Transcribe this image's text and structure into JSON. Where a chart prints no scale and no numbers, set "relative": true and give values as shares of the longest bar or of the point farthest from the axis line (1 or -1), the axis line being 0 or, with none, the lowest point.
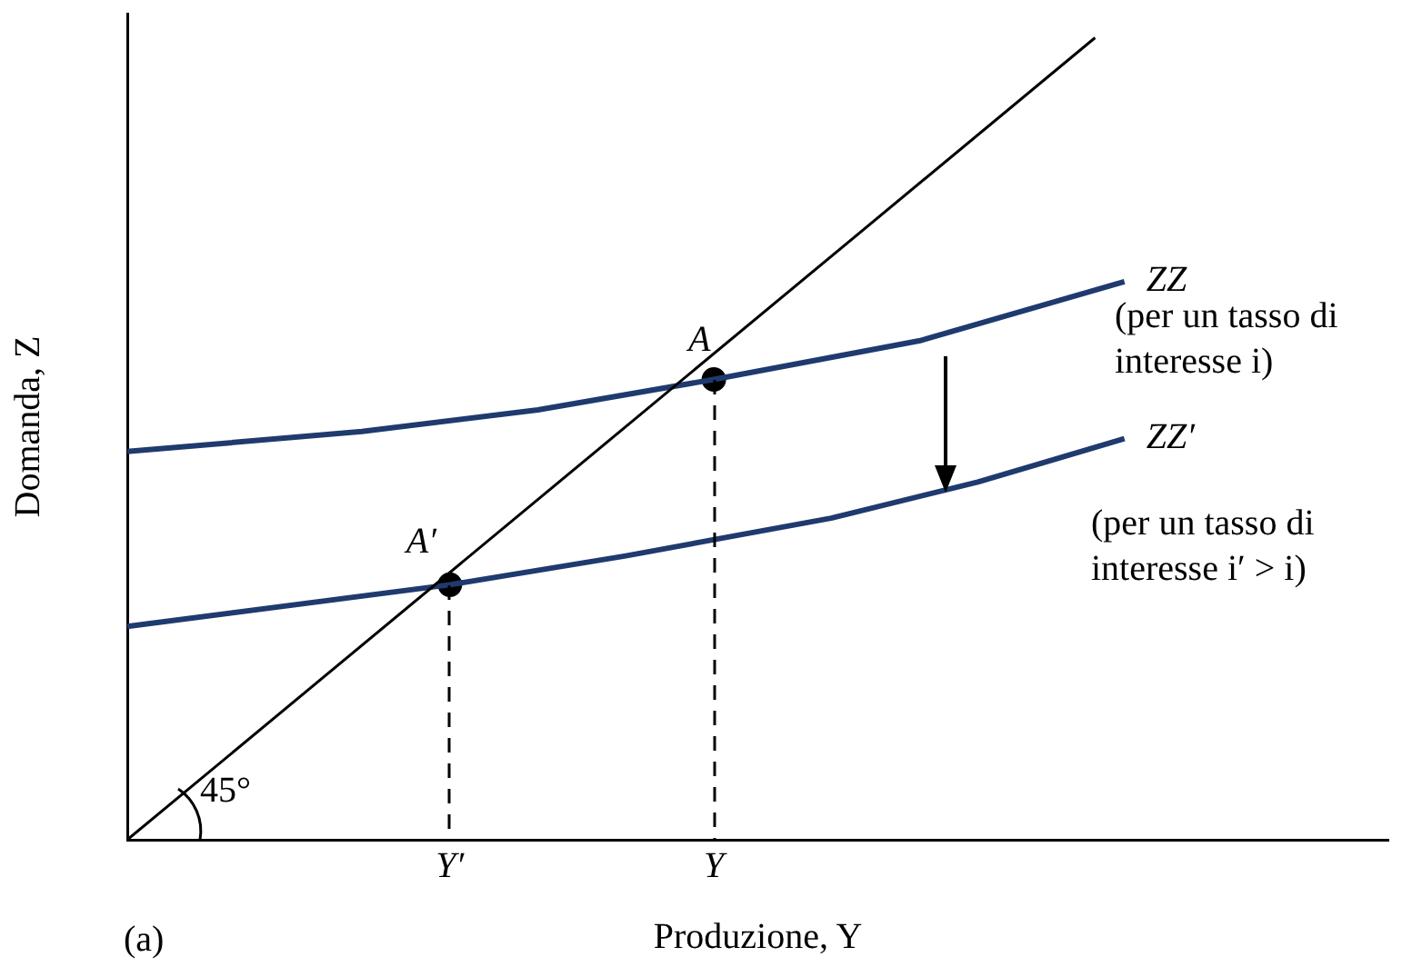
{
  "chart_data": {
    "type": "line",
    "relative": true,
    "xlabel": "Produzione, Y",
    "ylabel": "Domanda, Z",
    "grid": false,
    "legend": false,
    "marker": "none",
    "categories": [
      null,
      null,
      null,
      null,
      null,
      null,
      null,
      null,
      null,
      null,
      null,
      "Y′",
      null,
      null,
      null,
      null,
      null,
      null,
      null,
      null,
      "Y",
      null,
      null,
      null,
      null,
      null,
      null,
      null,
      null,
      null,
      null,
      null,
      null,
      null,
      null,
      null,
      null,
      null,
      null,
      null,
      null,
      null,
      null,
      null
    ],
    "series": [
      {
        "color": "#000000",
        "values": [
          0,
          null,
          null,
          null,
          null,
          null,
          null,
          null,
          null,
          null,
          null,
          null,
          null,
          null,
          null,
          null,
          null,
          null,
          null,
          null,
          null,
          null,
          null,
          null,
          null,
          null,
          null,
          null,
          null,
          null,
          null,
          null,
          null,
          1,
          null,
          null,
          null,
          null,
          null,
          null,
          null,
          null,
          null,
          null
        ]
      },
      {
        "name": "ZZ",
        "color": "#1f3a6e",
        "values": [
          0.484,
          null,
          null,
          null,
          null,
          null,
          null,
          null,
          0.509,
          null,
          null,
          null,
          null,
          null,
          0.536,
          null,
          null,
          null,
          null,
          null,
          0.574,
          null,
          null,
          null,
          null,
          null,
          null,
          0.622,
          null,
          null,
          null,
          null,
          null,
          null,
          0.696,
          null,
          null,
          null,
          null,
          null,
          null,
          null,
          null,
          null
        ]
      },
      {
        "name": "ZZ′",
        "color": "#1f3a6e",
        "values": [
          0.266,
          null,
          null,
          null,
          null,
          null,
          null,
          null,
          null,
          null,
          null,
          0.318,
          null,
          null,
          null,
          null,
          null,
          0.354,
          null,
          null,
          null,
          null,
          null,
          null,
          0.401,
          null,
          null,
          null,
          null,
          0.446,
          null,
          null,
          null,
          null,
          0.5,
          null,
          null,
          null,
          null,
          null,
          null,
          null,
          null,
          null
        ]
      },
      {
        "type": "scatter",
        "marker": "circle",
        "color": "#000000",
        "values": [
          null,
          null,
          null,
          null,
          null,
          null,
          null,
          null,
          null,
          null,
          null,
          0.318,
          null,
          null,
          null,
          null,
          null,
          null,
          null,
          null,
          0.574,
          null,
          null,
          null,
          null,
          null,
          null,
          null,
          null,
          null,
          null,
          null,
          null,
          null,
          null,
          null,
          null,
          null,
          null,
          null,
          null,
          null,
          null,
          null
        ]
      }
    ],
    "annotations": [
      {
        "text": "A",
        "x": "Y",
        "y": 0.574
      },
      {
        "text": "A′",
        "x": "Y′",
        "y": 0.318
      },
      "(per un tasso di interesse i)",
      "(per un tasso di interesse i′ > i)",
      "45°",
      "(a)"
    ]
  }
}
